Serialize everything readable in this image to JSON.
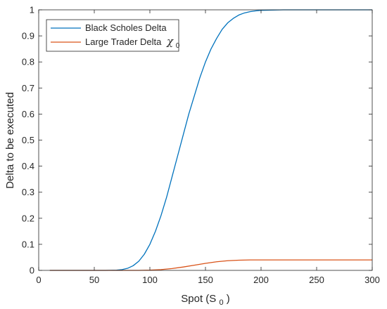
{
  "chart_data": {
    "type": "line",
    "xlabel": "Spot (S",
    "xlabel_sub": "0",
    "xlabel_close": ")",
    "ylabel": "Delta to be executed",
    "xlim": [
      0,
      300
    ],
    "ylim": [
      0,
      1
    ],
    "xticks": [
      "0",
      "50",
      "100",
      "150",
      "200",
      "250",
      "300"
    ],
    "yticks": [
      "0",
      "0.1",
      "0.2",
      "0.3",
      "0.4",
      "0.5",
      "0.6",
      "0.7",
      "0.8",
      "0.9",
      "1"
    ],
    "grid": false,
    "legend_position": "top-left",
    "series": [
      {
        "name": "Black Scholes Delta",
        "color": "#0072BD",
        "x": [
          10,
          60,
          70,
          75,
          80,
          85,
          90,
          95,
          100,
          105,
          110,
          115,
          120,
          125,
          130,
          135,
          140,
          145,
          150,
          155,
          160,
          165,
          170,
          175,
          180,
          185,
          190,
          195,
          200,
          210,
          220,
          230,
          250,
          300
        ],
        "y": [
          0,
          0,
          0.001,
          0.003,
          0.008,
          0.018,
          0.035,
          0.062,
          0.1,
          0.15,
          0.21,
          0.28,
          0.36,
          0.44,
          0.52,
          0.6,
          0.67,
          0.74,
          0.8,
          0.85,
          0.89,
          0.925,
          0.95,
          0.967,
          0.98,
          0.988,
          0.993,
          0.996,
          0.998,
          0.999,
          1.0,
          1.0,
          1.0,
          1.0
        ]
      },
      {
        "name": "Large Trader Delta",
        "legend_symbol": "χ",
        "legend_symbol_sub": "0",
        "color": "#D95319",
        "x": [
          10,
          90,
          100,
          110,
          120,
          130,
          140,
          150,
          160,
          170,
          180,
          190,
          200,
          220,
          250,
          300
        ],
        "y": [
          0,
          0,
          0.001,
          0.003,
          0.007,
          0.013,
          0.02,
          0.027,
          0.033,
          0.037,
          0.039,
          0.04,
          0.04,
          0.04,
          0.04,
          0.04
        ]
      }
    ]
  }
}
